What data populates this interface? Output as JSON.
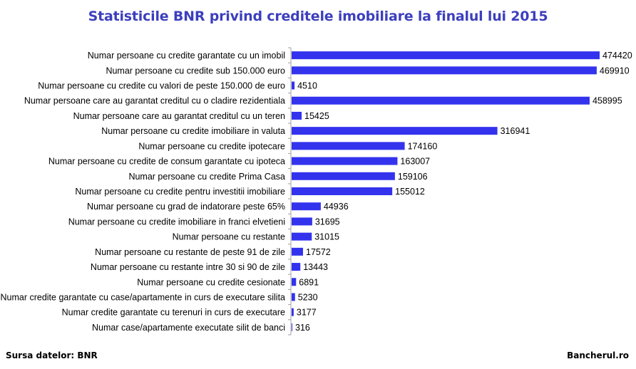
{
  "chart_data": {
    "type": "bar",
    "orientation": "horizontal",
    "title": "Statisticile BNR privind creditele imobiliare la finalul lui 2015",
    "categories": [
      "Numar persoane cu credite garantate cu un imobil",
      "Numar persoane cu credite sub 150.000 euro",
      "Numar persoane cu credite cu valori de peste 150.000 de euro",
      "Numar persoane care au garantat creditul cu o cladire rezidentiala",
      "Numar persoane care au garantat creditul cu un teren",
      "Numar persoane cu credite imobiliare in valuta",
      "Numar persoane cu credite ipotecare",
      "Numar persoane cu credite de consum garantate cu ipoteca",
      "Numar persoane cu credite Prima Casa",
      "Numar persoane cu credite pentru investitii imobiliare",
      "Numar persoane cu grad de indatorare peste 65%",
      "Numar persoane cu credite imobiliare in franci elvetieni",
      "Numar persoane cu restante",
      "Numar persoane cu restante de peste 91 de zile",
      "Numar persoane cu restante intre 30 si 90 de zile",
      "Numar persoane cu credite cesionate",
      "Numar credite garantate cu case/apartamente in curs de executare silita",
      "Numar credite garantate cu terenuri in curs de executare",
      "Numar case/apartamente executate silit de banci"
    ],
    "values": [
      474420,
      469910,
      4510,
      458995,
      15425,
      316941,
      174160,
      163007,
      159106,
      155012,
      44936,
      31695,
      31015,
      17572,
      13443,
      6891,
      5230,
      3177,
      316
    ],
    "value_labels": [
      "474420",
      "469910",
      "4510",
      "458995",
      "15425",
      "316941",
      "174160",
      "163007",
      "159106",
      "155012",
      "44936",
      "31695",
      "31015",
      "17572",
      "13443",
      "6891",
      "5230",
      "3177",
      "316"
    ],
    "xlim": [
      0,
      474420
    ],
    "grid": false,
    "legend": "none",
    "bar_color": "#3333ee"
  },
  "footer": {
    "source": "Sursa datelor: BNR",
    "brand": "Bancherul.ro"
  },
  "colors": {
    "title": "#3c3fbd",
    "bar": "#3333ee",
    "axis": "#a0a0a0"
  }
}
